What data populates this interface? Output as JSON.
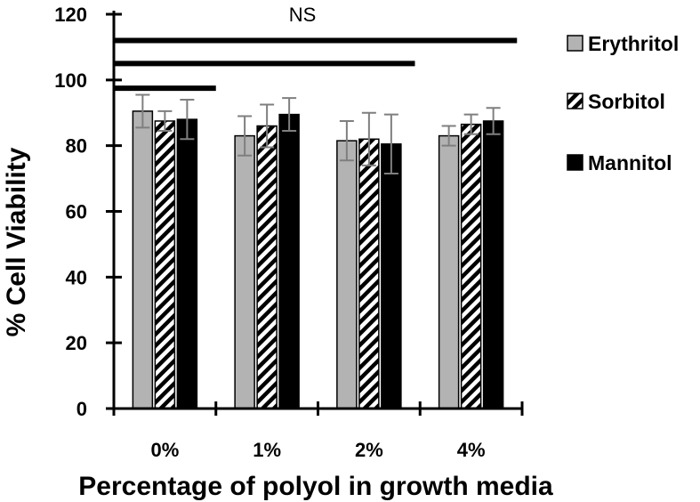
{
  "chart_data": {
    "type": "bar",
    "categories": [
      "0%",
      "1%",
      "2%",
      "4%"
    ],
    "series": [
      {
        "name": "Erythritol",
        "values": [
          90.5,
          83,
          81.5,
          83
        ],
        "errors": [
          5,
          6,
          6,
          3
        ],
        "fill": "#b3b3b3"
      },
      {
        "name": "Sorbitol",
        "values": [
          87.5,
          86,
          82,
          86.5
        ],
        "errors": [
          3,
          6.5,
          8,
          3
        ],
        "fill": "hatch"
      },
      {
        "name": "Mannitol",
        "values": [
          88,
          89.5,
          80.5,
          87.5
        ],
        "errors": [
          6,
          5,
          9,
          4
        ],
        "fill": "#000000"
      }
    ],
    "xlabel": "Percentage of polyol in growth media",
    "ylabel": "% Cell Viability",
    "ylim": [
      0,
      120
    ],
    "yticks": [
      0,
      20,
      40,
      60,
      80,
      100,
      120
    ],
    "significance": {
      "label": "NS",
      "bar_levels": [
        97.5,
        105,
        112
      ]
    },
    "legend_position": "right",
    "grid": false
  }
}
